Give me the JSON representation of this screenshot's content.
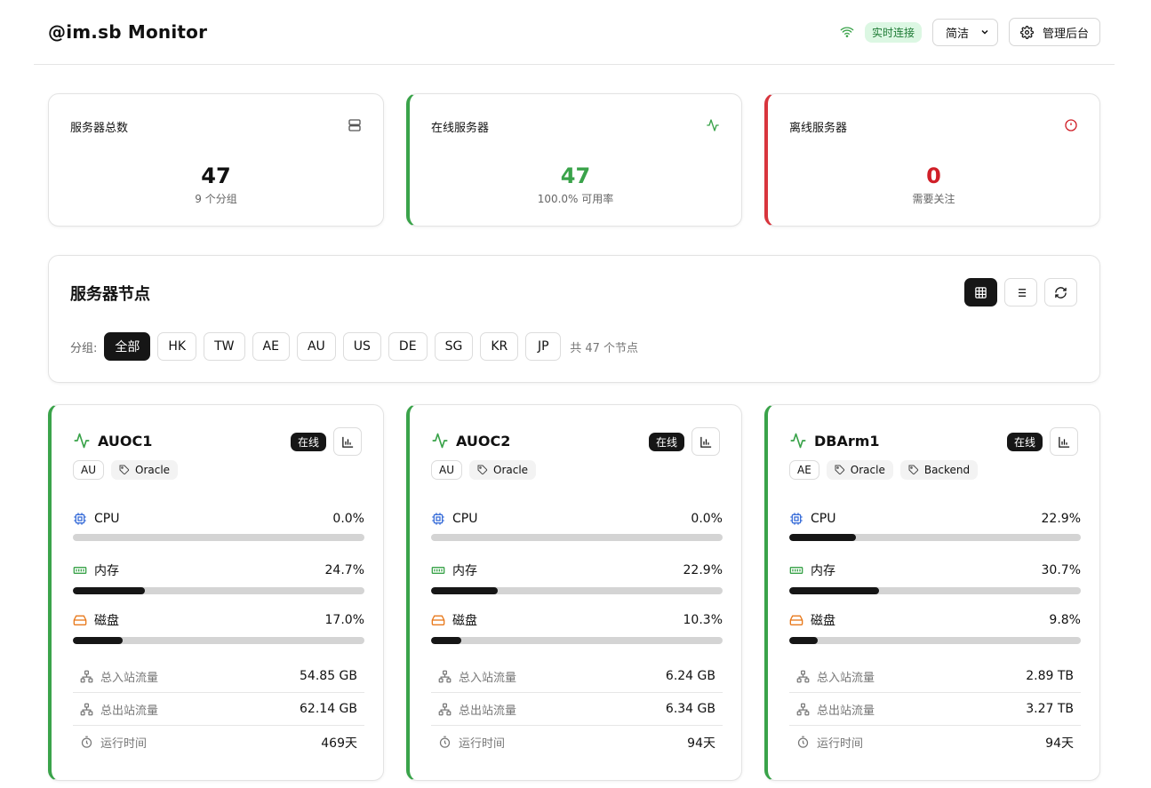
{
  "header": {
    "title": "@im.sb Monitor",
    "live_label": "实时连接",
    "theme_select": "简洁",
    "admin_label": "管理后台"
  },
  "stats": [
    {
      "title": "服务器总数",
      "value": "47",
      "sub": "9 个分组",
      "icon": "server-icon",
      "color": "#111111"
    },
    {
      "title": "在线服务器",
      "value": "47",
      "sub": "100.0% 可用率",
      "icon": "activity-icon",
      "color": "#3aa34a"
    },
    {
      "title": "离线服务器",
      "value": "0",
      "sub": "需要关注",
      "icon": "alert-circle-icon",
      "color": "#d01f28"
    }
  ],
  "nodes": {
    "title": "服务器节点",
    "group_label": "分组:",
    "groups": [
      "全部",
      "HK",
      "TW",
      "AE",
      "AU",
      "US",
      "DE",
      "SG",
      "KR",
      "JP"
    ],
    "count_text": "共 47 个节点"
  },
  "labels": {
    "online": "在线",
    "cpu": "CPU",
    "mem": "内存",
    "disk": "磁盘",
    "in": "总入站流量",
    "out": "总出站流量",
    "uptime": "运行时间"
  },
  "servers": [
    {
      "name": "AUOC1",
      "region": "AU",
      "tags": [
        "Oracle"
      ],
      "cpu": "0.0%",
      "cpu_frac": 0.0,
      "mem": "24.7%",
      "mem_frac": 0.247,
      "disk": "17.0%",
      "disk_frac": 0.17,
      "in": "54.85 GB",
      "out": "62.14 GB",
      "uptime": "469天"
    },
    {
      "name": "AUOC2",
      "region": "AU",
      "tags": [
        "Oracle"
      ],
      "cpu": "0.0%",
      "cpu_frac": 0.0,
      "mem": "22.9%",
      "mem_frac": 0.229,
      "disk": "10.3%",
      "disk_frac": 0.103,
      "in": "6.24 GB",
      "out": "6.34 GB",
      "uptime": "94天"
    },
    {
      "name": "DBArm1",
      "region": "AE",
      "tags": [
        "Oracle",
        "Backend"
      ],
      "cpu": "22.9%",
      "cpu_frac": 0.229,
      "mem": "30.7%",
      "mem_frac": 0.307,
      "disk": "9.8%",
      "disk_frac": 0.098,
      "in": "2.89 TB",
      "out": "3.27 TB",
      "uptime": "94天"
    }
  ]
}
